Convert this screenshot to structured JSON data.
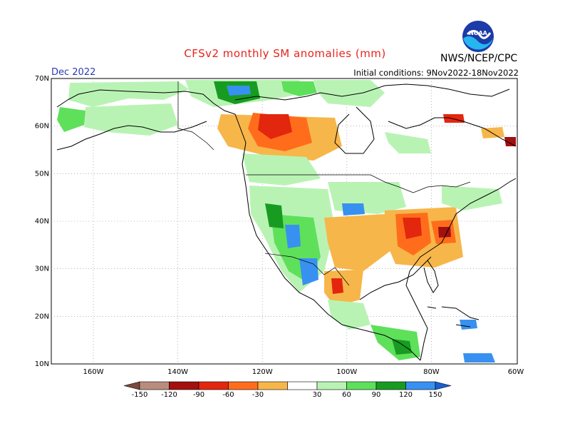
{
  "header": {
    "title": "CFSv2 monthly SM anomalies (mm)",
    "period": "Dec 2022",
    "initial_conditions": "Initial conditions: 9Nov2022-18Nov2022",
    "agency": "NWS/NCEP/CPC",
    "logo_text": "NOAA"
  },
  "axes": {
    "lat_ticks": [
      "70N",
      "60N",
      "50N",
      "40N",
      "30N",
      "20N",
      "10N"
    ],
    "lon_ticks": [
      "160W",
      "140W",
      "120W",
      "100W",
      "80W",
      "60W"
    ]
  },
  "legend": {
    "units": "mm",
    "tick_labels": [
      "-150",
      "-120",
      "-90",
      "-60",
      "-30",
      "30",
      "60",
      "90",
      "120",
      "150"
    ],
    "colors": [
      "#7b4a3d",
      "#b98c7e",
      "#a40f0f",
      "#e3260e",
      "#ff6d1c",
      "#f7b64a",
      "#ffffff",
      "#b9f3b4",
      "#5ee05b",
      "#179c21",
      "#3891f0",
      "#1b5fd0"
    ]
  },
  "anomaly_colors": {
    "dry_strong": "#e3260e",
    "dry_moderate": "#ff6d1c",
    "dry_weak": "#f7b64a",
    "wet_weak": "#b9f3b4",
    "wet_moderate": "#5ee05b",
    "wet_strong": "#179c21",
    "very_wet": "#3891f0"
  }
}
